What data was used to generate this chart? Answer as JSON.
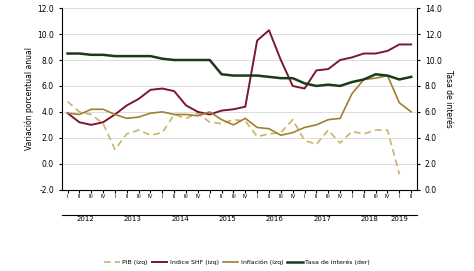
{
  "ylabel_left": "Variación porcentual anual",
  "ylabel_right": "Tasa de interés",
  "ylim_left": [
    -2.0,
    12.0
  ],
  "ylim_right": [
    0.0,
    14.0
  ],
  "yticks_left": [
    -2.0,
    0.0,
    2.0,
    4.0,
    6.0,
    8.0,
    10.0,
    12.0
  ],
  "yticks_right": [
    0.0,
    2.0,
    4.0,
    6.0,
    8.0,
    10.0,
    12.0,
    14.0
  ],
  "background_color": "#ffffff",
  "grid_color": "#d0d0d0",
  "x_labels": [
    "I",
    "II",
    "III",
    "IV",
    "I",
    "II",
    "III",
    "IV",
    "I",
    "II",
    "III",
    "IV",
    "I",
    "II",
    "III",
    "IV",
    "I",
    "II",
    "III",
    "IV",
    "I",
    "II",
    "III",
    "IV",
    "I",
    "II",
    "III",
    "IV",
    "I",
    "II"
  ],
  "year_labels": [
    "2012",
    "2013",
    "2014",
    "2015",
    "2016",
    "2017",
    "2018",
    "2019"
  ],
  "year_tick_positions": [
    1.5,
    5.5,
    9.5,
    13.5,
    17.5,
    21.5,
    25.5,
    28.0
  ],
  "pib": [
    4.8,
    4.0,
    3.8,
    3.1,
    1.1,
    2.3,
    2.6,
    2.2,
    2.4,
    3.8,
    3.5,
    3.9,
    3.2,
    3.1,
    3.4,
    3.3,
    2.1,
    2.3,
    2.4,
    3.4,
    1.8,
    1.5,
    2.6,
    1.6,
    2.5,
    2.3,
    2.6,
    2.6,
    -0.8
  ],
  "shf": [
    3.9,
    3.2,
    3.0,
    3.2,
    3.8,
    4.5,
    5.0,
    5.7,
    5.8,
    5.6,
    4.5,
    4.0,
    3.8,
    4.1,
    4.2,
    4.4,
    9.5,
    10.3,
    8.0,
    6.0,
    5.8,
    7.2,
    7.3,
    8.0,
    8.2,
    8.5,
    8.5,
    8.7,
    9.2,
    9.2
  ],
  "inflacion": [
    3.9,
    3.8,
    4.2,
    4.2,
    3.8,
    3.5,
    3.6,
    3.9,
    4.0,
    3.8,
    3.8,
    3.7,
    4.0,
    3.4,
    3.0,
    3.5,
    2.8,
    2.7,
    2.2,
    2.4,
    2.8,
    3.0,
    3.4,
    3.5,
    5.4,
    6.5,
    6.6,
    6.8,
    4.7,
    4.0
  ],
  "tasa": [
    10.5,
    10.5,
    10.4,
    10.4,
    10.3,
    10.3,
    10.3,
    10.3,
    10.1,
    10.0,
    10.0,
    10.0,
    10.0,
    8.9,
    8.8,
    8.8,
    8.8,
    8.7,
    8.6,
    8.6,
    8.2,
    8.0,
    8.1,
    8.0,
    8.3,
    8.5,
    8.9,
    8.8,
    8.5,
    8.7
  ],
  "pib_color": "#c8b468",
  "shf_color": "#7b1734",
  "inflacion_color": "#a08030",
  "tasa_color": "#1a3a1a",
  "legend_labels": [
    "PIB (izq)",
    "Indice SHF (izq)",
    "Inflación (izq)",
    "Tasa de interés (der)"
  ]
}
